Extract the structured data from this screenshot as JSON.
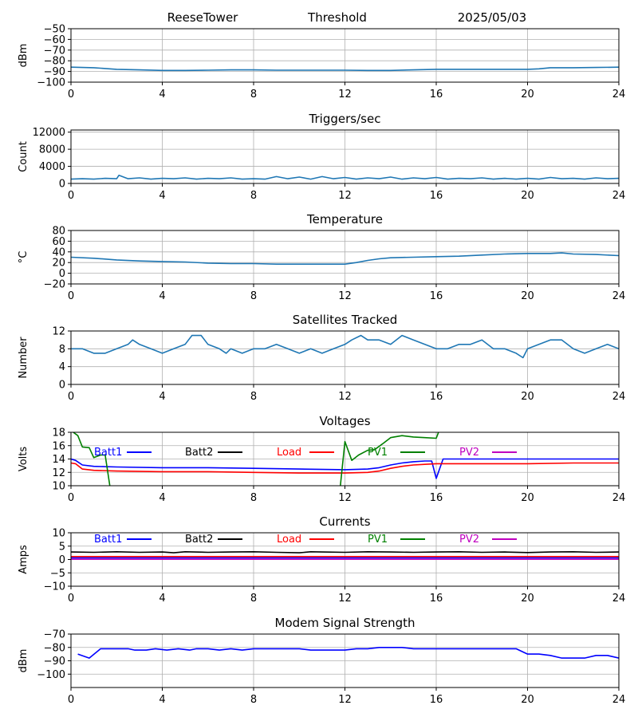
{
  "header": {
    "station": "ReeseTower",
    "mode": "Threshold",
    "date": "2025/05/03"
  },
  "chart_data": [
    {
      "type": "line",
      "title": "",
      "ylabel": "dBm",
      "xlim": [
        0,
        24
      ],
      "xticks": [
        0,
        4,
        8,
        12,
        16,
        20,
        24
      ],
      "ylim": [
        -100,
        -50
      ],
      "yticks": [
        -100,
        -90,
        -80,
        -70,
        -60,
        -50
      ],
      "grid": true,
      "series": [
        {
          "color": "#1f77b4",
          "x": [
            0,
            1,
            2,
            3,
            4,
            5,
            6,
            7,
            8,
            9,
            10,
            11,
            12,
            13,
            14,
            15,
            16,
            17,
            18,
            19,
            20,
            20.5,
            21,
            22,
            23,
            24
          ],
          "y": [
            -86,
            -86.5,
            -88,
            -88.5,
            -89,
            -89,
            -88.8,
            -88.5,
            -88.5,
            -88.8,
            -88.8,
            -88.8,
            -88.8,
            -89,
            -89,
            -88.5,
            -88,
            -88,
            -88,
            -88,
            -88,
            -87.5,
            -86.5,
            -86.5,
            -86.3,
            -86
          ]
        }
      ]
    },
    {
      "type": "line",
      "title": "Triggers/sec",
      "ylabel": "Count",
      "xlim": [
        0,
        24
      ],
      "xticks": [
        0,
        4,
        8,
        12,
        16,
        20,
        24
      ],
      "ylim": [
        0,
        12500
      ],
      "yticks": [
        0,
        4000,
        8000,
        12000
      ],
      "grid": true,
      "series": [
        {
          "color": "#1f77b4",
          "x": [
            0,
            0.5,
            1,
            1.5,
            2,
            2.1,
            2.5,
            3,
            3.5,
            4,
            4.5,
            5,
            5.5,
            6,
            6.5,
            7,
            7.5,
            8,
            8.5,
            9,
            9.5,
            10,
            10.5,
            11,
            11.5,
            12,
            12.5,
            13,
            13.5,
            14,
            14.5,
            15,
            15.5,
            16,
            16.5,
            17,
            17.5,
            18,
            18.5,
            19,
            19.5,
            20,
            20.5,
            21,
            21.5,
            22,
            22.5,
            23,
            23.5,
            24
          ],
          "y": [
            1000,
            1100,
            1000,
            1200,
            1100,
            1900,
            1100,
            1300,
            1000,
            1200,
            1100,
            1300,
            1000,
            1200,
            1100,
            1300,
            1000,
            1100,
            1000,
            1600,
            1100,
            1500,
            1000,
            1600,
            1100,
            1400,
            1000,
            1300,
            1100,
            1500,
            1000,
            1300,
            1100,
            1400,
            1000,
            1200,
            1100,
            1300,
            1000,
            1200,
            1000,
            1200,
            1000,
            1400,
            1100,
            1200,
            1000,
            1300,
            1100,
            1200
          ]
        }
      ]
    },
    {
      "type": "line",
      "title": "Temperature",
      "ylabel": "°C",
      "xlim": [
        0,
        24
      ],
      "xticks": [
        0,
        4,
        8,
        12,
        16,
        20,
        24
      ],
      "ylim": [
        -20,
        80
      ],
      "yticks": [
        -20,
        0,
        20,
        40,
        60,
        80
      ],
      "grid": true,
      "series": [
        {
          "color": "#1f77b4",
          "x": [
            0,
            1,
            2,
            3,
            4,
            5,
            6,
            7,
            8,
            9,
            10,
            11,
            12,
            12.5,
            13,
            13.5,
            14,
            15,
            16,
            17,
            18,
            19,
            20,
            21,
            21.5,
            22,
            23,
            24
          ],
          "y": [
            30,
            28,
            25,
            23,
            22,
            21,
            19,
            18,
            18,
            17,
            17,
            17,
            17,
            20,
            24,
            27,
            29,
            30,
            31,
            32,
            34,
            36,
            37,
            37,
            38,
            36,
            35,
            33
          ]
        }
      ]
    },
    {
      "type": "line",
      "title": "Satellites Tracked",
      "ylabel": "Number",
      "xlim": [
        0,
        24
      ],
      "xticks": [
        0,
        4,
        8,
        12,
        16,
        20,
        24
      ],
      "ylim": [
        0,
        12
      ],
      "yticks": [
        0,
        4,
        8,
        12
      ],
      "grid": true,
      "series": [
        {
          "color": "#1f77b4",
          "x": [
            0,
            0.5,
            1,
            1.5,
            2,
            2.5,
            2.7,
            3,
            3.5,
            4,
            4.5,
            5,
            5.3,
            5.7,
            6,
            6.5,
            6.8,
            7,
            7.5,
            8,
            8.5,
            9,
            9.5,
            10,
            10.5,
            11,
            11.5,
            12,
            12.3,
            12.7,
            13,
            13.5,
            14,
            14.5,
            15,
            15.5,
            16,
            16.5,
            17,
            17.5,
            18,
            18.5,
            19,
            19.5,
            19.8,
            20,
            20.5,
            21,
            21.5,
            22,
            22.5,
            23,
            23.5,
            24
          ],
          "y": [
            8,
            8,
            7,
            7,
            8,
            9,
            10,
            9,
            8,
            7,
            8,
            9,
            11,
            11,
            9,
            8,
            7,
            8,
            7,
            8,
            8,
            9,
            8,
            7,
            8,
            7,
            8,
            9,
            10,
            11,
            10,
            10,
            9,
            11,
            10,
            9,
            8,
            8,
            9,
            9,
            10,
            8,
            8,
            7,
            6,
            8,
            9,
            10,
            10,
            8,
            7,
            8,
            9,
            8
          ]
        }
      ]
    },
    {
      "type": "line",
      "title": "Voltages",
      "ylabel": "Volts",
      "xlim": [
        0,
        24
      ],
      "xticks": [
        0,
        4,
        8,
        12,
        16,
        20,
        24
      ],
      "ylim": [
        10,
        18
      ],
      "yticks": [
        10,
        12,
        14,
        16,
        18
      ],
      "grid": true,
      "legend": [
        "Batt1",
        "Batt2",
        "Load",
        "PV1",
        "PV2"
      ],
      "series": [
        {
          "name": "Batt1",
          "color": "#0000ff",
          "x": [
            0,
            0.2,
            0.5,
            1,
            2,
            4,
            6,
            8,
            10,
            12,
            13,
            13.5,
            14,
            14.5,
            15,
            15.5,
            15.8,
            16,
            16.3,
            17,
            18,
            20,
            22,
            24
          ],
          "y": [
            14,
            13.8,
            13.1,
            12.9,
            12.8,
            12.7,
            12.7,
            12.6,
            12.5,
            12.4,
            12.5,
            12.7,
            13.1,
            13.4,
            13.6,
            13.7,
            13.7,
            11.1,
            14,
            14,
            14,
            14,
            14,
            14
          ]
        },
        {
          "name": "Load",
          "color": "#ff0000",
          "x": [
            0,
            0.2,
            0.5,
            1,
            2,
            4,
            6,
            8,
            10,
            12,
            13,
            13.5,
            14,
            14.5,
            15,
            15.5,
            16,
            17,
            18,
            20,
            22,
            24
          ],
          "y": [
            13.4,
            13.3,
            12.5,
            12.3,
            12.2,
            12.1,
            12.1,
            12,
            11.9,
            11.9,
            12,
            12.2,
            12.6,
            12.9,
            13.1,
            13.2,
            13.3,
            13.3,
            13.3,
            13.3,
            13.4,
            13.4
          ]
        },
        {
          "name": "PV1",
          "color": "#008000",
          "segments": [
            {
              "x": [
                0.1,
                0.3,
                0.5,
                0.8,
                1.0,
                1.3,
                1.5,
                1.7
              ],
              "y": [
                18,
                17.5,
                15.8,
                15.7,
                14.2,
                14.6,
                14.6,
                10
              ]
            },
            {
              "x": [
                11.8,
                12,
                12.3,
                12.6,
                13,
                13.3,
                13.7,
                14,
                14.5,
                15,
                15.5,
                16,
                16.1
              ],
              "y": [
                10,
                16.6,
                13.8,
                14.6,
                15.3,
                15.4,
                16.4,
                17.2,
                17.5,
                17.3,
                17.2,
                17.1,
                18
              ]
            }
          ]
        }
      ]
    },
    {
      "type": "line",
      "title": "Currents",
      "ylabel": "Amps",
      "xlim": [
        0,
        24
      ],
      "xticks": [
        0,
        4,
        8,
        12,
        16,
        20,
        24
      ],
      "ylim": [
        -10,
        10
      ],
      "yticks": [
        -10,
        -5,
        0,
        5,
        10
      ],
      "grid": true,
      "legend": [
        "Batt1",
        "Batt2",
        "Load",
        "PV1",
        "PV2"
      ],
      "series": [
        {
          "name": "Batt2",
          "color": "#000000",
          "x": [
            0,
            1,
            2,
            3,
            4,
            4.5,
            5,
            6,
            7,
            8,
            9,
            10,
            10.5,
            11,
            12,
            13,
            14,
            15,
            16,
            17,
            18,
            19,
            20,
            21,
            22,
            23,
            24
          ],
          "y": [
            2.8,
            2.7,
            2.9,
            2.7,
            2.8,
            2.5,
            2.9,
            2.7,
            2.8,
            2.9,
            2.7,
            2.5,
            2.9,
            2.8,
            2.7,
            2.9,
            2.8,
            2.7,
            2.8,
            2.9,
            2.7,
            2.8,
            2.6,
            2.8,
            2.9,
            2.7,
            2.8
          ]
        },
        {
          "name": "Load",
          "color": "#ff0000",
          "x": [
            0,
            24
          ],
          "y": [
            1.1,
            1.1
          ]
        },
        {
          "name": "Batt1",
          "color": "#0000ff",
          "x": [
            0,
            24
          ],
          "y": [
            0.6,
            0.6
          ]
        },
        {
          "name": "PV2",
          "color": "#bf00bf",
          "x": [
            0,
            24
          ],
          "y": [
            0.1,
            0.1
          ]
        }
      ]
    },
    {
      "type": "line",
      "title": "Modem Signal Strength",
      "ylabel": "dBm",
      "xlim": [
        0,
        24
      ],
      "xticks": [
        0,
        4,
        8,
        12,
        16,
        20,
        24
      ],
      "ylim": [
        -110,
        -70
      ],
      "yticks": [
        -100,
        -90,
        -80,
        -70
      ],
      "grid": true,
      "series": [
        {
          "color": "#0000ff",
          "x": [
            0.3,
            0.8,
            1.3,
            2.5,
            2.8,
            3.3,
            3.7,
            4.2,
            4.7,
            5.2,
            5.5,
            6,
            6.5,
            7,
            7.5,
            8,
            9,
            10,
            10.5,
            11,
            12,
            12.5,
            13,
            13.5,
            14,
            14.5,
            15,
            16,
            17,
            18,
            19,
            19.5,
            20,
            20.5,
            21,
            21.5,
            22,
            22.5,
            23,
            23.5,
            24
          ],
          "y": [
            -85,
            -88,
            -81,
            -81,
            -82,
            -82,
            -81,
            -82,
            -81,
            -82,
            -81,
            -81,
            -82,
            -81,
            -82,
            -81,
            -81,
            -81,
            -82,
            -82,
            -82,
            -81,
            -81,
            -80,
            -80,
            -80,
            -81,
            -81,
            -81,
            -81,
            -81,
            -81,
            -85,
            -85,
            -86,
            -88,
            -88,
            -88,
            -86,
            -86,
            -88
          ]
        }
      ]
    }
  ]
}
